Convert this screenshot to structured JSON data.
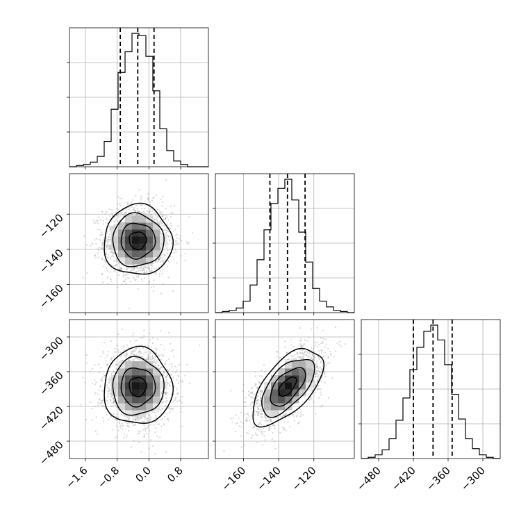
{
  "chart_data": {
    "type": "corner",
    "colors": {
      "hist": "#000000",
      "quantile": "#000000",
      "grid": "#b0b0b0",
      "scatter": "#8c8c8c",
      "density_dark": "#000000"
    },
    "grid": true,
    "parameters": [
      {
        "index": 0,
        "quantiles": [
          -0.72,
          -0.28,
          0.13
        ],
        "range": [
          -2.0,
          1.5
        ],
        "ticks": [
          "-1.6",
          "-0.8",
          "0.0",
          "0.8"
        ],
        "tick_values": [
          -1.6,
          -0.8,
          0.0,
          0.8
        ]
      },
      {
        "index": 1,
        "quantiles": [
          -145,
          -135,
          -125
        ],
        "range": [
          -176,
          -97
        ],
        "ticks": [
          "-160",
          "-140",
          "-120"
        ],
        "tick_values": [
          -160,
          -140,
          -120
        ]
      },
      {
        "index": 2,
        "quantiles": [
          -420,
          -386,
          -353
        ],
        "range": [
          -510,
          -270
        ],
        "ticks": [
          "-480",
          "-420",
          "-360",
          "-300"
        ],
        "tick_values": [
          -480,
          -420,
          -360,
          -300
        ]
      }
    ],
    "histograms": [
      {
        "param": 0,
        "bins": [
          -2.0,
          -1.825,
          -1.65,
          -1.475,
          -1.3,
          -1.125,
          -0.95,
          -0.775,
          -0.6,
          -0.425,
          -0.25,
          -0.075,
          0.1,
          0.275,
          0.45,
          0.625,
          0.8,
          0.975,
          1.15,
          1.325,
          1.5
        ],
        "counts": [
          0,
          1,
          2,
          4,
          9,
          22,
          50,
          82,
          100,
          116,
          114,
          96,
          66,
          33,
          14,
          5,
          2,
          0,
          0,
          0
        ]
      },
      {
        "param": 1,
        "bins": [
          -176,
          -172.05,
          -168.1,
          -164.15,
          -160.2,
          -156.25,
          -152.3,
          -148.35,
          -144.4,
          -140.45,
          -136.5,
          -132.55,
          -128.6,
          -124.65,
          -120.7,
          -116.75,
          -112.8,
          -108.85,
          -104.9,
          -100.95,
          -97
        ],
        "counts": [
          0,
          1,
          2,
          4,
          10,
          24,
          46,
          72,
          95,
          108,
          116,
          98,
          70,
          44,
          21,
          10,
          5,
          2,
          1,
          0
        ]
      },
      {
        "param": 2,
        "bins": [
          -510,
          -498,
          -486,
          -474,
          -462,
          -450,
          -438,
          -426,
          -414,
          -402,
          -390,
          -378,
          -366,
          -354,
          -342,
          -330,
          -318,
          -306,
          -294,
          -282,
          -270
        ],
        "counts": [
          0,
          1,
          3,
          7,
          16,
          31,
          49,
          72,
          90,
          103,
          108,
          96,
          76,
          52,
          32,
          16,
          8,
          3,
          1,
          0
        ]
      }
    ],
    "scatter_panels": [
      {
        "x_param": 0,
        "y_param": 1,
        "x_mean": -0.28,
        "y_mean": -135,
        "x_sd": 0.43,
        "y_sd": 10,
        "correlation": 0.0,
        "mode": [
          -0.25,
          -133
        ]
      },
      {
        "x_param": 0,
        "y_param": 2,
        "x_mean": -0.28,
        "y_mean": -386,
        "x_sd": 0.43,
        "y_sd": 33,
        "correlation": 0.0,
        "mode": [
          -0.25,
          -382
        ]
      },
      {
        "x_param": 1,
        "y_param": 2,
        "x_mean": -135,
        "y_mean": -386,
        "x_sd": 10,
        "y_sd": 33,
        "correlation": 0.6,
        "mode": [
          -133,
          -382
        ]
      }
    ],
    "contour_levels_sigma": [
      0.5,
      1.0,
      1.5,
      2.0
    ]
  }
}
